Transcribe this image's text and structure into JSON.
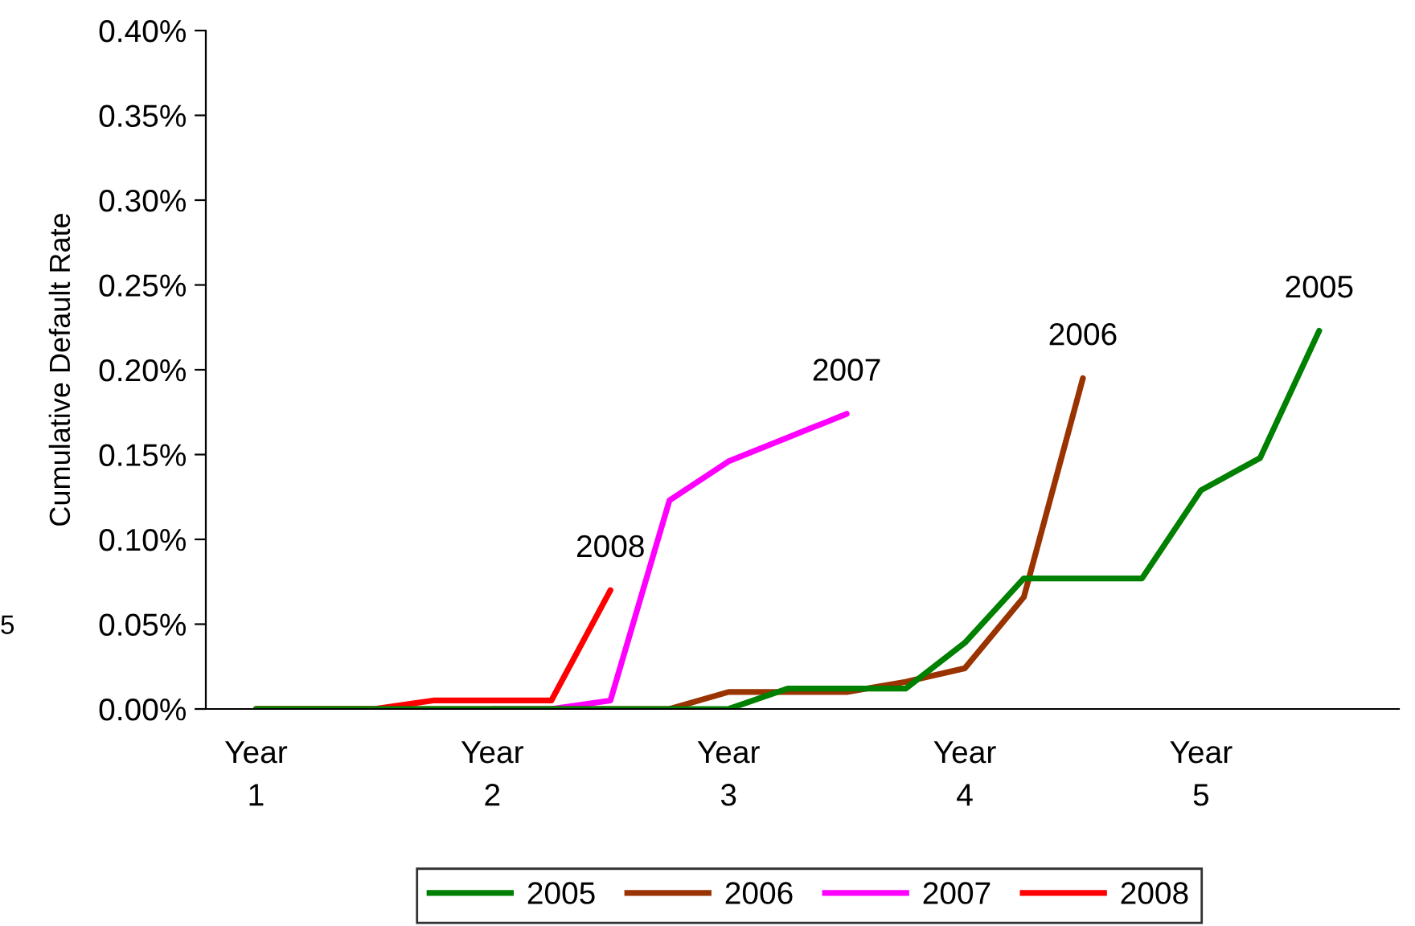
{
  "chart_data": {
    "type": "line",
    "ylabel": "Cumulative Default Rate",
    "categories": [
      "Year\n1",
      null,
      null,
      null,
      "Year\n2",
      null,
      null,
      null,
      "Year\n3",
      null,
      null,
      null,
      "Year\n4",
      null,
      null,
      null,
      "Year\n5",
      null,
      null,
      null
    ],
    "ylim": [
      0,
      0.4
    ],
    "yticks": [
      {
        "value": 0,
        "label": "0.00%"
      },
      {
        "value": 0.05,
        "label": "0.05%"
      },
      {
        "value": 0.1,
        "label": "0.10%"
      },
      {
        "value": 0.15,
        "label": "0.15%"
      },
      {
        "value": 0.2,
        "label": "0.20%"
      },
      {
        "value": 0.25,
        "label": "0.25%"
      },
      {
        "value": 0.3,
        "label": "0.30%"
      },
      {
        "value": 0.35,
        "label": "0.35%"
      },
      {
        "value": 0.4,
        "label": "0.40%"
      }
    ],
    "grid": false,
    "legend": "bottom",
    "marker": "none",
    "line_style": "solid",
    "annotations": [
      "5"
    ],
    "series": [
      {
        "name": "2005",
        "color": "#008000",
        "values": [
          0,
          0,
          0,
          0,
          0,
          0,
          0,
          0,
          0,
          0.012,
          0.012,
          0.012,
          0.039,
          0.077,
          0.077,
          0.077,
          0.129,
          0.148,
          0.223,
          null
        ]
      },
      {
        "name": "2006",
        "color": "#993300",
        "values": [
          0,
          0,
          0,
          0,
          0,
          0,
          0,
          0,
          0.01,
          0.01,
          0.01,
          0.016,
          0.024,
          0.066,
          0.195,
          null,
          null,
          null,
          null,
          null
        ]
      },
      {
        "name": "2007",
        "color": "#ff00ff",
        "values": [
          null,
          null,
          null,
          null,
          0,
          0,
          0.005,
          0.123,
          0.146,
          0.16,
          0.174,
          null,
          null,
          null,
          null,
          null,
          null,
          null,
          null,
          null
        ]
      },
      {
        "name": "2008",
        "color": "#ff0000",
        "values": [
          0,
          0,
          0,
          0.005,
          0.005,
          0.005,
          0.07,
          null,
          null,
          null,
          null,
          null,
          null,
          null,
          null,
          null,
          null,
          null,
          null,
          null
        ]
      }
    ]
  }
}
